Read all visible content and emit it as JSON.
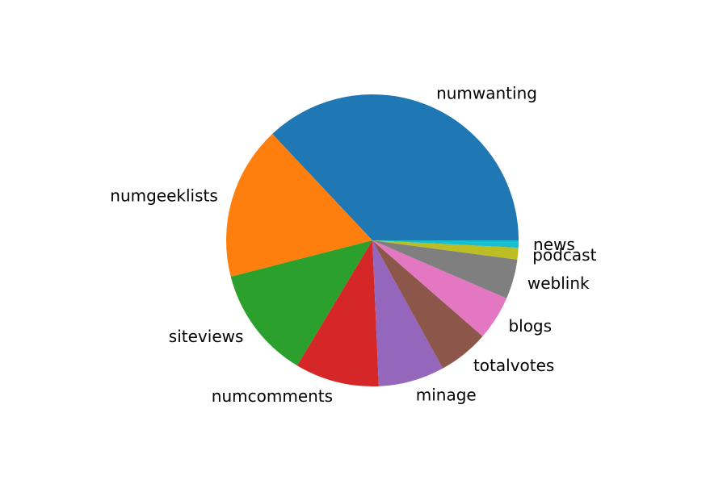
{
  "chart_data": {
    "type": "pie",
    "start_angle_deg": 0,
    "direction": "counterclockwise",
    "slices": [
      {
        "label": "numwanting",
        "value": 37.0,
        "color": "#1f77b4"
      },
      {
        "label": "numgeeklists",
        "value": 17.0,
        "color": "#ff7f0e"
      },
      {
        "label": "siteviews",
        "value": 12.4,
        "color": "#2ca02c"
      },
      {
        "label": "numcomments",
        "value": 9.3,
        "color": "#d62728"
      },
      {
        "label": "minage",
        "value": 7.3,
        "color": "#9467bd"
      },
      {
        "label": "totalvotes",
        "value": 5.6,
        "color": "#8c564b"
      },
      {
        "label": "blogs",
        "value": 4.9,
        "color": "#e377c2"
      },
      {
        "label": "weblink",
        "value": 4.4,
        "color": "#7f7f7f"
      },
      {
        "label": "podcast",
        "value": 1.3,
        "color": "#bcbd22"
      },
      {
        "label": "news",
        "value": 0.8,
        "color": "#17becf"
      }
    ]
  }
}
